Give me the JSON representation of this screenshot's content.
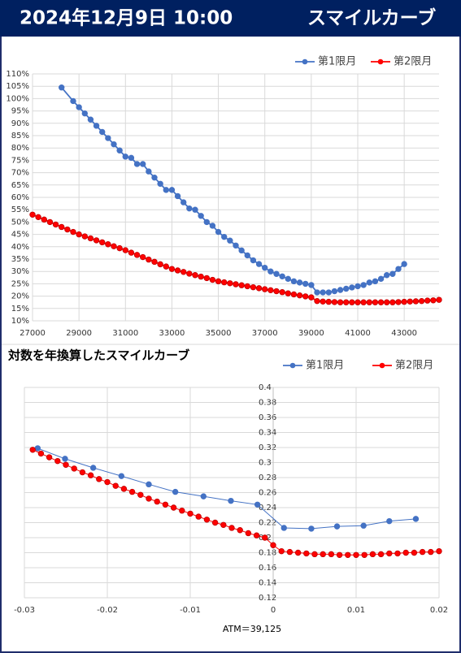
{
  "header": {
    "date": "2024年12月9日 10:00",
    "title": "スマイルカーブ"
  },
  "chart_data": [
    {
      "type": "line",
      "xlim": [
        27000,
        44500
      ],
      "xticks": [
        27000,
        29000,
        31000,
        33000,
        35000,
        37000,
        39000,
        41000,
        43000
      ],
      "ylim": [
        10,
        110
      ],
      "yticks": [
        {
          "value": 10,
          "label": "10%"
        },
        {
          "value": 15,
          "label": "15%"
        },
        {
          "value": 20,
          "label": "20%"
        },
        {
          "value": 25,
          "label": "25%"
        },
        {
          "value": 30,
          "label": "30%"
        },
        {
          "value": 35,
          "label": "35%"
        },
        {
          "value": 40,
          "label": "40%"
        },
        {
          "value": 45,
          "label": "45%"
        },
        {
          "value": 50,
          "label": "50%"
        },
        {
          "value": 55,
          "label": "55%"
        },
        {
          "value": 60,
          "label": "60%"
        },
        {
          "value": 65,
          "label": "65%"
        },
        {
          "value": 70,
          "label": "70%"
        },
        {
          "value": 75,
          "label": "75%"
        },
        {
          "value": 80,
          "label": "80%"
        },
        {
          "value": 85,
          "label": "85%"
        },
        {
          "value": 90,
          "label": "90%"
        },
        {
          "value": 95,
          "label": "95%"
        },
        {
          "value": 100,
          "label": "100%"
        },
        {
          "value": 105,
          "label": "105%"
        },
        {
          "value": 110,
          "label": "110%"
        }
      ],
      "grid": true,
      "legend": "top-right",
      "series": [
        {
          "name": "第1限月",
          "color": "#4472C4",
          "x": [
            28250,
            28750,
            29000,
            29250,
            29500,
            29750,
            30000,
            30250,
            30500,
            30750,
            31000,
            31250,
            31500,
            31750,
            32000,
            32250,
            32500,
            32750,
            33000,
            33250,
            33500,
            33750,
            34000,
            34250,
            34500,
            34750,
            35000,
            35250,
            35500,
            35750,
            36000,
            36250,
            36500,
            36750,
            37000,
            37250,
            37500,
            37750,
            38000,
            38250,
            38500,
            38750,
            39000,
            39250,
            39500,
            39750,
            40000,
            40250,
            40500,
            40750,
            41000,
            41250,
            41500,
            41750,
            42000,
            42250,
            42500,
            42750,
            43000
          ],
          "values": [
            104.5,
            99,
            96.5,
            94,
            91.5,
            89,
            86.5,
            84,
            81.5,
            79,
            76.5,
            76,
            73.5,
            73.5,
            70.5,
            68,
            65.5,
            63,
            63,
            60.5,
            58,
            55.5,
            55,
            52.5,
            50,
            48.5,
            46,
            44,
            42.5,
            40.5,
            38.5,
            36.5,
            34.5,
            33,
            31.5,
            30,
            29,
            28,
            27,
            26,
            25.5,
            25,
            24.5,
            21.5,
            21.5,
            21.5,
            22,
            22.5,
            23,
            23.5,
            24,
            24.5,
            25.5,
            26,
            27,
            28.5,
            29,
            31,
            33
          ]
        },
        {
          "name": "第2限月",
          "color": "#FF0000",
          "x": [
            27000,
            27250,
            27500,
            27750,
            28000,
            28250,
            28500,
            28750,
            29000,
            29250,
            29500,
            29750,
            30000,
            30250,
            30500,
            30750,
            31000,
            31250,
            31500,
            31750,
            32000,
            32250,
            32500,
            32750,
            33000,
            33250,
            33500,
            33750,
            34000,
            34250,
            34500,
            34750,
            35000,
            35250,
            35500,
            35750,
            36000,
            36250,
            36500,
            36750,
            37000,
            37250,
            37500,
            37750,
            38000,
            38250,
            38500,
            38750,
            39000,
            39250,
            39500,
            39750,
            40000,
            40250,
            40500,
            40750,
            41000,
            41250,
            41500,
            41750,
            42000,
            42250,
            42500,
            42750,
            43000,
            43250,
            43500,
            43750,
            44000,
            44250,
            44500
          ],
          "values": [
            53,
            52,
            51,
            50,
            49,
            48,
            47,
            46,
            45,
            44.2,
            43.4,
            42.6,
            41.8,
            41,
            40.2,
            39.4,
            38.6,
            37.6,
            36.7,
            35.8,
            34.8,
            33.9,
            32.9,
            32,
            31,
            30.4,
            29.8,
            29.1,
            28.5,
            27.9,
            27.3,
            26.6,
            26,
            25.6,
            25.2,
            24.8,
            24.4,
            24,
            23.6,
            23.2,
            22.8,
            22.4,
            22,
            21.6,
            21.1,
            20.7,
            20.3,
            19.9,
            19.5,
            18,
            17.8,
            17.7,
            17.6,
            17.5,
            17.5,
            17.5,
            17.5,
            17.5,
            17.5,
            17.5,
            17.5,
            17.5,
            17.5,
            17.6,
            17.7,
            17.8,
            17.9,
            18,
            18.2,
            18.3,
            18.5
          ]
        }
      ]
    },
    {
      "type": "line",
      "title": "対数を年換算したスマイルカーブ",
      "x_label": "ATM＝39,125",
      "xlim": [
        -0.03,
        0.02
      ],
      "xticks": [
        -0.03,
        -0.02,
        -0.01,
        0,
        0.01,
        0.02
      ],
      "ylim": [
        0.12,
        0.4
      ],
      "yticks": [
        0.12,
        0.14,
        0.16,
        0.18,
        0.2,
        0.22,
        0.24,
        0.26,
        0.28,
        0.3,
        0.32,
        0.34,
        0.36,
        0.38,
        0.4
      ],
      "y_axis_at": 0,
      "grid": true,
      "legend": "top-right",
      "series": [
        {
          "name": "第1限月",
          "color": "#4472C4",
          "x": [
            -0.0284,
            -0.0251,
            -0.0217,
            -0.0183,
            -0.015,
            -0.0118,
            -0.0084,
            -0.0051,
            -0.0019,
            0.0013,
            0.0046,
            0.0077,
            0.0109,
            0.014,
            0.0172
          ],
          "values": [
            0.319,
            0.305,
            0.293,
            0.282,
            0.271,
            0.261,
            0.255,
            0.249,
            0.244,
            0.213,
            0.212,
            0.215,
            0.216,
            0.222,
            0.225
          ]
        },
        {
          "name": "第2限月",
          "color": "#FF0000",
          "x": [
            -0.029,
            -0.028,
            -0.027,
            -0.026,
            -0.025,
            -0.024,
            -0.023,
            -0.022,
            -0.021,
            -0.02,
            -0.019,
            -0.018,
            -0.017,
            -0.016,
            -0.015,
            -0.014,
            -0.013,
            -0.012,
            -0.011,
            -0.01,
            -0.009,
            -0.008,
            -0.007,
            -0.006,
            -0.005,
            -0.004,
            -0.003,
            -0.002,
            -0.001,
            0,
            0.001,
            0.002,
            0.003,
            0.004,
            0.005,
            0.006,
            0.007,
            0.008,
            0.009,
            0.01,
            0.011,
            0.012,
            0.013,
            0.014,
            0.015,
            0.016,
            0.017,
            0.018,
            0.019,
            0.02
          ],
          "values": [
            0.317,
            0.312,
            0.307,
            0.302,
            0.297,
            0.292,
            0.287,
            0.283,
            0.278,
            0.274,
            0.269,
            0.265,
            0.261,
            0.257,
            0.252,
            0.248,
            0.244,
            0.24,
            0.236,
            0.232,
            0.228,
            0.224,
            0.22,
            0.217,
            0.213,
            0.21,
            0.206,
            0.203,
            0.2,
            0.19,
            0.182,
            0.181,
            0.18,
            0.179,
            0.178,
            0.178,
            0.178,
            0.177,
            0.177,
            0.177,
            0.177,
            0.178,
            0.178,
            0.179,
            0.179,
            0.18,
            0.18,
            0.181,
            0.181,
            0.182
          ]
        }
      ]
    }
  ]
}
